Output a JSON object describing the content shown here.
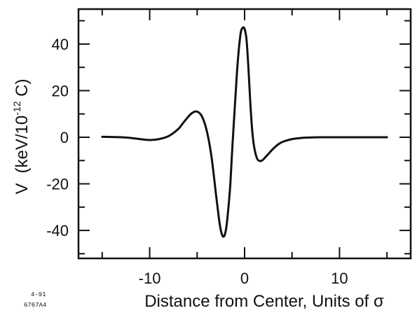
{
  "chart_data": {
    "type": "line",
    "title": "",
    "xlabel": "Distance from Center, Units of σ",
    "ylabel_main": "V",
    "ylabel_unit_prefix": "(keV/10",
    "ylabel_unit_exp": "-12",
    "ylabel_unit_suffix": " C)",
    "xlim": [
      -17.5,
      17.5
    ],
    "ylim": [
      -52,
      55
    ],
    "x_ticks": [
      -10,
      0,
      10
    ],
    "x_tick_labels": [
      "-10",
      "0",
      "10"
    ],
    "y_ticks": [
      -40,
      -20,
      0,
      20,
      40
    ],
    "y_tick_labels": [
      "-40",
      "-20",
      "0",
      "20",
      "40"
    ],
    "x_minor_ticks": [
      -15,
      -5,
      5,
      15
    ],
    "y_minor_ticks": [
      -50,
      -30,
      -10,
      10,
      30,
      50
    ],
    "grid": false,
    "series": [
      {
        "x": [
          -15,
          -14,
          -13,
          -12,
          -11,
          -10,
          -9,
          -8,
          -7,
          -6.5,
          -6,
          -5.5,
          -5,
          -4.5,
          -4,
          -3.5,
          -3,
          -2.7,
          -2.5,
          -2.3,
          -2.1,
          -1.9,
          -1.7,
          -1.5,
          -1.3,
          -1,
          -0.8,
          -0.6,
          -0.4,
          -0.2,
          0,
          0.2,
          0.4,
          0.6,
          0.8,
          1,
          1.3,
          1.6,
          1.9,
          2.2,
          2.5,
          3,
          3.5,
          4,
          5,
          6,
          7,
          8,
          10,
          12,
          15
        ],
        "y": [
          0.2,
          0.1,
          0,
          -0.3,
          -0.8,
          -1.2,
          -0.8,
          0.5,
          3.5,
          6,
          8.5,
          10.5,
          11,
          9,
          3,
          -8,
          -25,
          -35,
          -40,
          -42.5,
          -42,
          -38,
          -30,
          -20,
          -5,
          15,
          28,
          38,
          45,
          47,
          46.5,
          42,
          30,
          15,
          3,
          -4,
          -9,
          -10.2,
          -9.8,
          -8.5,
          -7.2,
          -5,
          -3.2,
          -2,
          -0.8,
          -0.3,
          -0.1,
          0,
          0,
          0,
          0
        ]
      }
    ]
  },
  "footnote": {
    "line1": "4-91",
    "line2": "6767A4"
  }
}
